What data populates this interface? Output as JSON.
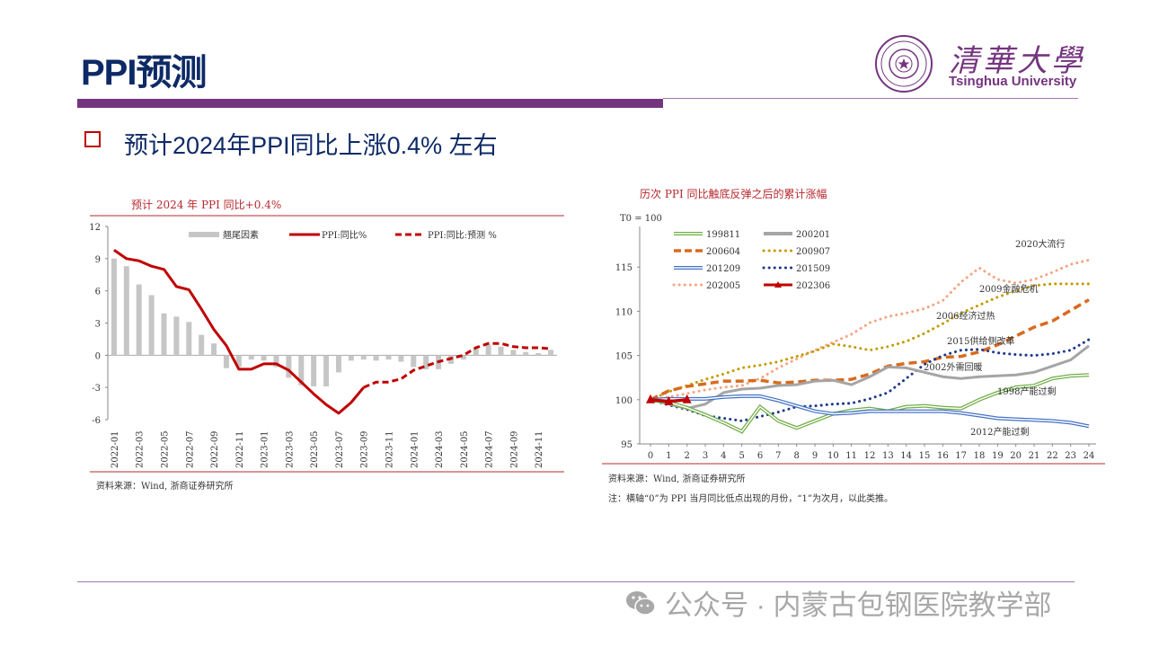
{
  "header": {
    "title": "PPI预测",
    "logo_cn": "清華大學",
    "logo_en": "Tsinghua University"
  },
  "bullet_text": "预计2024年PPI同比上涨0.4% 左右",
  "left_source": "资料来源：Wind, 浙商证券研究所",
  "right_source": "资料来源：Wind, 浙商证券研究所",
  "right_note": "注：横轴“0”为 PPI 当月同比低点出现的月份，“1”为次月，以此类推。",
  "footer": {
    "text": "公众号 · 内蒙古包钢医院教学部"
  },
  "colors": {
    "accent_purple": "#74357f",
    "title_navy": "#0e2a66",
    "chart_red": "#c00000"
  },
  "chart_data": [
    {
      "type": "bar+line",
      "title": "预计 2024 年 PPI 同比+0.4%",
      "ylim": [
        -6,
        12
      ],
      "yticks": [
        12,
        9,
        6,
        3,
        0,
        -3,
        -6
      ],
      "x_tick_labels": [
        "2022-01",
        "2022-03",
        "2022-05",
        "2022-07",
        "2022-09",
        "2022-11",
        "2023-01",
        "2023-03",
        "2023-05",
        "2023-07",
        "2023-09",
        "2023-11",
        "2024-01",
        "2024-03",
        "2024-05",
        "2024-07",
        "2024-09",
        "2024-11"
      ],
      "legend": [
        "翘尾因素",
        "PPI:同比%",
        "PPI:同比:预测 %"
      ],
      "legend_position": "top",
      "months": [
        "2022-01",
        "2022-02",
        "2022-03",
        "2022-04",
        "2022-05",
        "2022-06",
        "2022-07",
        "2022-08",
        "2022-09",
        "2022-10",
        "2022-11",
        "2022-12",
        "2023-01",
        "2023-02",
        "2023-03",
        "2023-04",
        "2023-05",
        "2023-06",
        "2023-07",
        "2023-08",
        "2023-09",
        "2023-10",
        "2023-11",
        "2023-12",
        "2024-01",
        "2024-02",
        "2024-03",
        "2024-04",
        "2024-05",
        "2024-06",
        "2024-07",
        "2024-08",
        "2024-09",
        "2024-10",
        "2024-11",
        "2024-12"
      ],
      "series": [
        {
          "name": "翘尾因素",
          "kind": "bar",
          "values": [
            9.0,
            8.3,
            6.6,
            5.6,
            3.9,
            3.6,
            3.1,
            1.9,
            1.1,
            -1.2,
            -1.1,
            -0.4,
            -0.5,
            -1.1,
            -2.1,
            -2.8,
            -2.9,
            -2.9,
            -1.6,
            -0.5,
            -0.4,
            -0.5,
            -0.4,
            -0.6,
            -1.1,
            -1.3,
            -1.3,
            -0.8,
            -0.4,
            0.6,
            1.0,
            0.8,
            0.5,
            0.3,
            0.2,
            0.5
          ]
        },
        {
          "name": "PPI:同比%",
          "kind": "line",
          "values": [
            9.8,
            9.0,
            8.8,
            8.3,
            8.0,
            6.4,
            6.1,
            4.3,
            2.4,
            0.9,
            -1.3,
            -1.3,
            -0.8,
            -0.8,
            -1.4,
            -2.5,
            -3.6,
            -4.6,
            -5.4,
            -4.4,
            -3.0
          ]
        },
        {
          "name": "PPI:同比:预测 %",
          "kind": "dashed-line",
          "offset": 20,
          "values": [
            -3.0,
            -2.5,
            -2.5,
            -2.2,
            -1.4,
            -1.0,
            -0.6,
            -0.3,
            0.0,
            0.7,
            1.1,
            1.1,
            0.8,
            0.7,
            0.7,
            0.6
          ]
        }
      ]
    },
    {
      "type": "line",
      "title": "历次 PPI 同比触底反弹之后的累计涨幅",
      "ylabel": "T0 = 100",
      "ylim": [
        95,
        120
      ],
      "yticks": [
        115,
        110,
        105,
        100,
        95
      ],
      "x": [
        0,
        1,
        2,
        3,
        4,
        5,
        6,
        7,
        8,
        9,
        10,
        11,
        12,
        13,
        14,
        15,
        16,
        17,
        18,
        19,
        20,
        21,
        22,
        23,
        24
      ],
      "legend_position": "top-left",
      "series": [
        {
          "name": "199811",
          "label": "1998产能过剩",
          "color": "#70ad47",
          "style": "double",
          "values": [
            100,
            99.7,
            99.1,
            98.3,
            97.4,
            96.4,
            99.2,
            97.6,
            96.8,
            97.6,
            98.4,
            98.8,
            99.0,
            98.7,
            99.2,
            99.3,
            99.1,
            99.0,
            100.0,
            100.8,
            101.4,
            101.6,
            102.4,
            102.7,
            102.8
          ]
        },
        {
          "name": "200201",
          "label": "2002外需回暖",
          "color": "#a5a5a5",
          "style": "solid",
          "values": [
            100,
            99.5,
            99.0,
            99.5,
            100.8,
            101.2,
            101.3,
            101.6,
            101.7,
            102.1,
            102.2,
            101.7,
            102.6,
            103.7,
            103.6,
            103.1,
            102.6,
            102.4,
            102.6,
            102.7,
            102.8,
            103.1,
            103.8,
            104.5,
            106.1
          ]
        },
        {
          "name": "200604",
          "label": "2006经济过热",
          "color": "#d86b20",
          "style": "dashed",
          "values": [
            100,
            101.0,
            101.5,
            101.8,
            102.1,
            102.1,
            102.2,
            101.9,
            102.0,
            102.2,
            102.2,
            102.3,
            102.9,
            103.8,
            104.1,
            104.3,
            104.8,
            104.9,
            105.4,
            106.2,
            107.2,
            108.2,
            108.9,
            110.1,
            111.3
          ]
        },
        {
          "name": "200907",
          "label": "2009金融危机",
          "color": "#c29b00",
          "style": "dotted",
          "values": [
            100,
            100.9,
            101.6,
            102.3,
            102.9,
            103.6,
            103.9,
            104.3,
            104.9,
            105.5,
            106.3,
            106.0,
            105.6,
            106.0,
            106.6,
            107.5,
            108.6,
            109.8,
            110.7,
            111.6,
            112.3,
            112.9,
            113.1,
            113.1,
            113.1
          ]
        },
        {
          "name": "201209",
          "label": "2012产能过剩",
          "color": "#4472c4",
          "style": "double",
          "values": [
            100,
            100.1,
            100.1,
            100.1,
            100.3,
            100.4,
            100.4,
            99.9,
            99.3,
            98.7,
            98.4,
            98.5,
            98.7,
            98.7,
            98.7,
            98.7,
            98.7,
            98.5,
            98.2,
            97.9,
            97.8,
            97.7,
            97.6,
            97.4,
            97.0
          ]
        },
        {
          "name": "201509",
          "label": "2015供给侧改革",
          "color": "#1f3a8a",
          "style": "dotted",
          "values": [
            100,
            99.4,
            98.9,
            98.2,
            97.9,
            97.6,
            98.1,
            98.6,
            99.2,
            99.3,
            99.5,
            99.6,
            100.1,
            100.8,
            102.4,
            104.0,
            105.0,
            105.6,
            105.7,
            105.3,
            105.1,
            105.0,
            105.2,
            105.6,
            106.8
          ]
        },
        {
          "name": "202005",
          "label": "2020大流行",
          "color": "#f4a582",
          "style": "dotted",
          "values": [
            100,
            100.3,
            100.7,
            101.1,
            101.4,
            101.6,
            102.4,
            103.6,
            104.6,
            105.6,
            106.5,
            107.4,
            108.7,
            109.4,
            109.8,
            110.3,
            111.2,
            113.3,
            114.9,
            113.6,
            113.2,
            113.6,
            114.4,
            115.3,
            115.8
          ]
        },
        {
          "name": "202306",
          "label": "",
          "color": "#c00000",
          "style": "solid-triangle",
          "values": [
            100,
            99.8,
            100.0
          ]
        }
      ]
    }
  ]
}
